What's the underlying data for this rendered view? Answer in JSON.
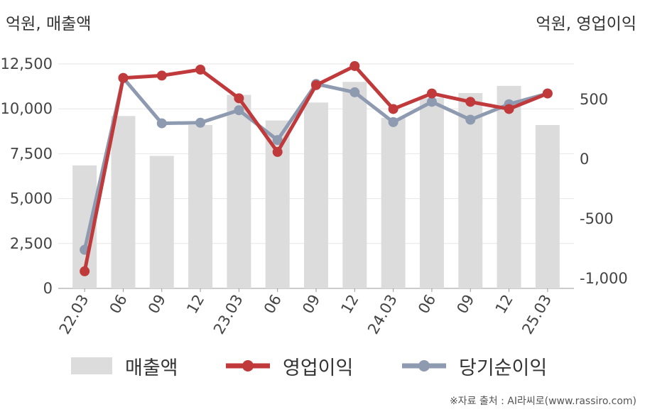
{
  "chart_data": {
    "type": "bar+line",
    "left_axis_unit": "억원, 매출액",
    "right_axis_unit": "억원, 영업이익",
    "categories": [
      "22.03",
      "06",
      "09",
      "12",
      "23.03",
      "06",
      "09",
      "12",
      "24.03",
      "06",
      "09",
      "12",
      "25.03"
    ],
    "left_ticks": [
      "0",
      "2,500",
      "5,000",
      "7,500",
      "10,000",
      "12,500"
    ],
    "right_ticks": [
      "-1,000",
      "-500",
      "0",
      "500"
    ],
    "left_ylim": [
      0,
      12500
    ],
    "right_ylim": [
      -1000,
      500
    ],
    "series": [
      {
        "name": "매출액",
        "type": "bar",
        "axis": "left",
        "color": "#dcdcdc",
        "values": [
          6850,
          9600,
          7380,
          9100,
          10780,
          9350,
          10350,
          11500,
          9500,
          10620,
          10880,
          11280,
          9100
        ]
      },
      {
        "name": "영업이익",
        "type": "line",
        "axis": "right",
        "color": "#c0393b",
        "values": [
          -940,
          680,
          700,
          750,
          510,
          60,
          620,
          780,
          420,
          550,
          480,
          420,
          550
        ]
      },
      {
        "name": "당기순이익",
        "type": "line",
        "axis": "right",
        "color": "#8e9ab0",
        "values": [
          -760,
          680,
          300,
          305,
          410,
          160,
          630,
          560,
          310,
          480,
          330,
          460,
          550
        ]
      }
    ]
  },
  "source": "※자료 출처 : AI라씨로(www.rassiro.com)"
}
